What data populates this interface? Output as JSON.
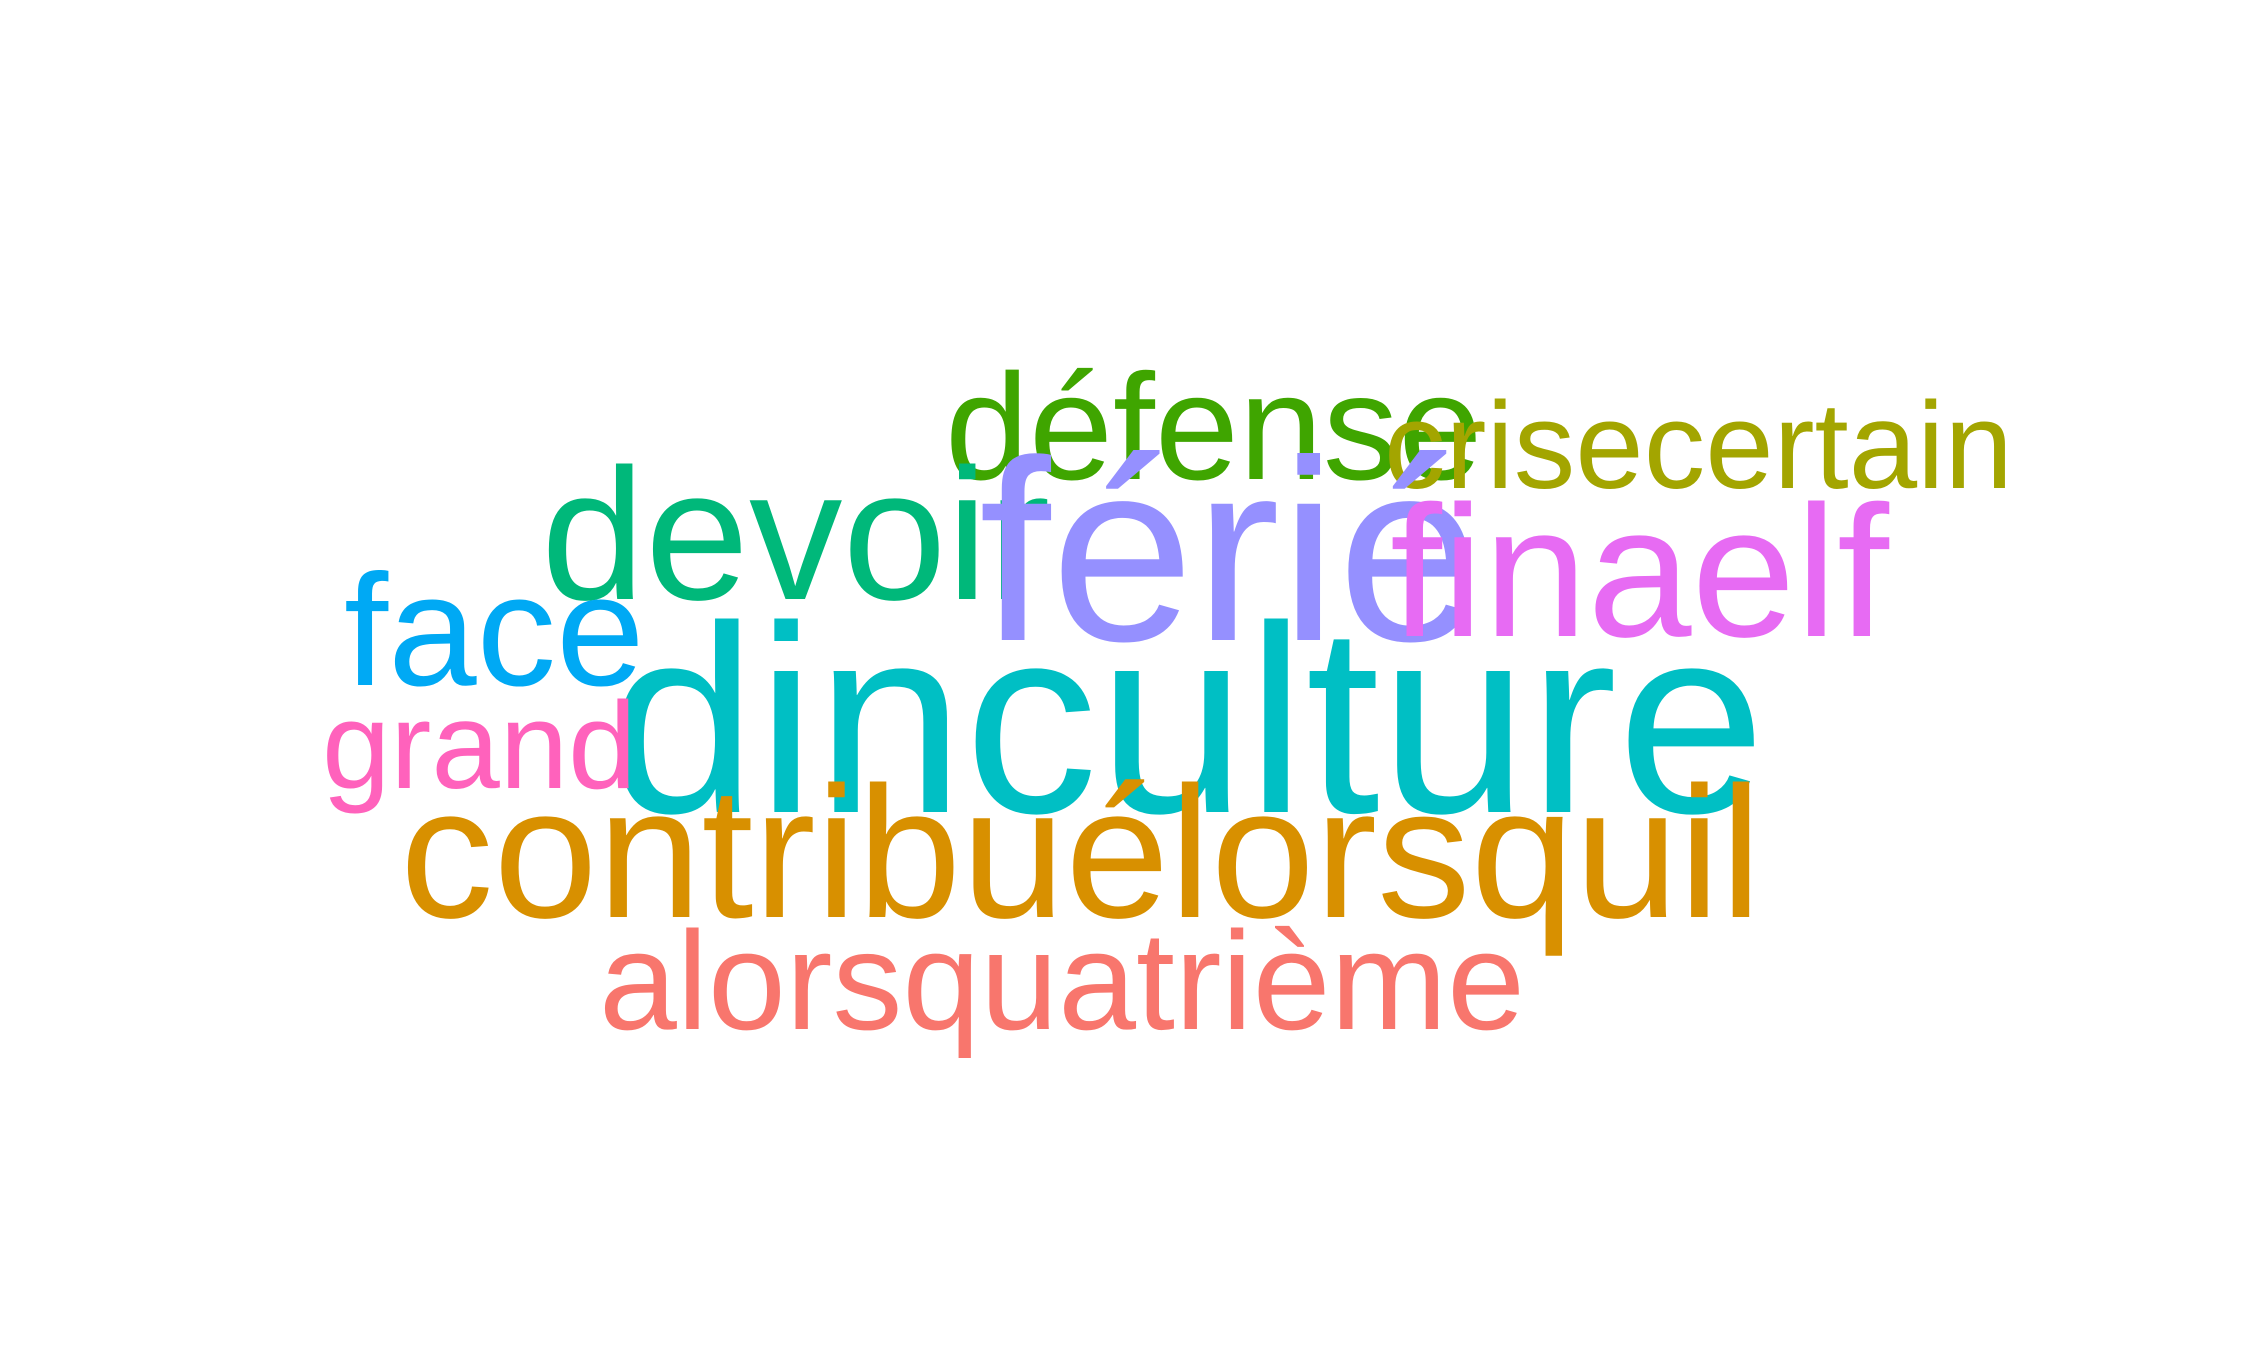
{
  "word_cloud": {
    "background": "#ffffff",
    "words": [
      {
        "text": "défense",
        "color": "#3fa500"
      },
      {
        "text": "crisecertain",
        "color": "#a3a500"
      },
      {
        "text": "devoir",
        "color": "#00b87a"
      },
      {
        "text": "férié",
        "color": "#9590ff"
      },
      {
        "text": "finaelf",
        "color": "#e76bf3"
      },
      {
        "text": "face",
        "color": "#00a9f4"
      },
      {
        "text": "dinculture",
        "color": "#00bfc4"
      },
      {
        "text": "grand",
        "color": "#ff62bc"
      },
      {
        "text": "contribuélorsquil",
        "color": "#d89000"
      },
      {
        "text": "alorsquatrième",
        "color": "#f8766d"
      }
    ]
  }
}
